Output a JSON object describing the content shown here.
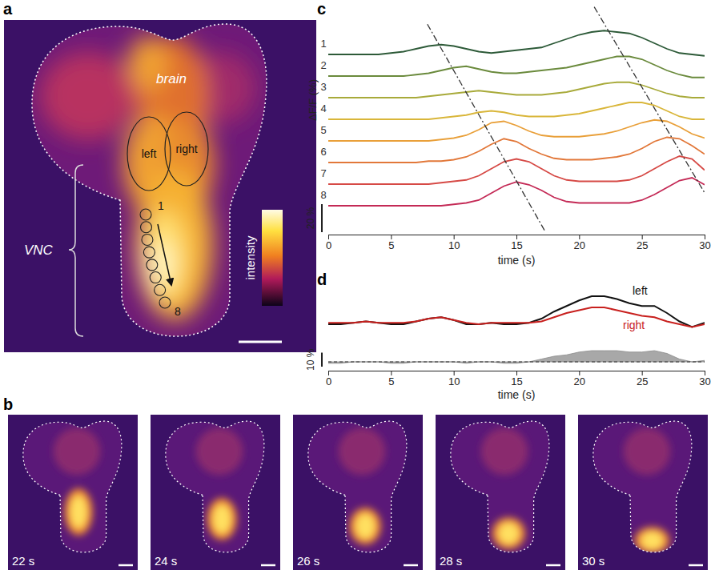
{
  "figure": {
    "a": {
      "letter": "a",
      "region_labels": {
        "brain": "brain",
        "vnc": "VNC"
      },
      "colorbar_label": "intensity"
    },
    "b": {
      "letter": "b",
      "frames": [
        {
          "value": 22,
          "label": "22 s"
        },
        {
          "value": 24,
          "label": "24 s"
        },
        {
          "value": 26,
          "label": "26 s"
        },
        {
          "value": 28,
          "label": "28 s"
        },
        {
          "value": 30,
          "label": "30 s"
        }
      ]
    }
  },
  "chart_data": [
    {
      "type": "line",
      "panel_label": "c",
      "y_label": "ΔF/F (%)",
      "x_label": "time (s)",
      "tick_labels": "x",
      "xlim": [
        0,
        30
      ],
      "xticks": [
        0,
        5,
        10,
        15,
        20,
        25,
        30
      ],
      "x": [
        0,
        1,
        2,
        3,
        4,
        5,
        6,
        7,
        8,
        9,
        10,
        11,
        12,
        13,
        14,
        15,
        16,
        17,
        18,
        19,
        20,
        21,
        22,
        23,
        24,
        25,
        26,
        27,
        28,
        29,
        30
      ],
      "series": [
        {
          "name": "1",
          "color": "#2d5a38",
          "values": [
            0,
            0,
            0,
            0,
            0,
            1,
            2,
            4,
            6,
            7,
            6,
            4,
            2,
            1,
            2,
            3,
            4,
            5,
            8,
            11,
            14,
            16,
            17,
            16,
            15,
            12,
            8,
            4,
            1,
            0,
            -1
          ]
        },
        {
          "name": "2",
          "color": "#6a8a3c",
          "values": [
            0,
            0,
            0,
            0,
            0,
            0,
            0,
            1,
            2,
            4,
            6,
            7,
            5,
            3,
            2,
            2,
            3,
            4,
            5,
            6,
            8,
            10,
            12,
            14,
            14,
            12,
            8,
            4,
            1,
            -1,
            -1
          ]
        },
        {
          "name": "3",
          "color": "#a8aa3a",
          "values": [
            0,
            0,
            0,
            0,
            0,
            0,
            0,
            0,
            1,
            2,
            3,
            4,
            5,
            4,
            3,
            2,
            2,
            2,
            3,
            4,
            6,
            8,
            10,
            11,
            11,
            9,
            6,
            3,
            1,
            0,
            0
          ]
        },
        {
          "name": "4",
          "color": "#d9b63a",
          "values": [
            0,
            0,
            0,
            0,
            0,
            0,
            0,
            0,
            0,
            1,
            2,
            3,
            5,
            6,
            5,
            3,
            2,
            2,
            2,
            3,
            4,
            6,
            8,
            10,
            12,
            12,
            10,
            6,
            2,
            0,
            0
          ]
        },
        {
          "name": "5",
          "color": "#e9a03a",
          "values": [
            0,
            0,
            0,
            0,
            0,
            0,
            0,
            0,
            0,
            1,
            2,
            4,
            8,
            13,
            14,
            11,
            7,
            4,
            3,
            3,
            3,
            4,
            5,
            7,
            10,
            13,
            15,
            14,
            10,
            5,
            2
          ]
        },
        {
          "name": "6",
          "color": "#e2783a",
          "values": [
            0,
            0,
            0,
            0,
            0,
            0,
            0,
            0,
            1,
            1,
            2,
            4,
            8,
            13,
            17,
            15,
            10,
            6,
            3,
            2,
            2,
            2,
            3,
            4,
            6,
            10,
            15,
            18,
            17,
            12,
            6
          ]
        },
        {
          "name": "7",
          "color": "#d64a46",
          "values": [
            0,
            0,
            0,
            0,
            0,
            0,
            0,
            0,
            0,
            1,
            2,
            3,
            6,
            11,
            16,
            18,
            16,
            11,
            6,
            3,
            2,
            2,
            2,
            2,
            3,
            6,
            11,
            16,
            20,
            18,
            10
          ]
        },
        {
          "name": "8",
          "color": "#c42a56",
          "values": [
            0,
            0,
            0,
            0,
            0,
            0,
            0,
            0,
            0,
            0,
            1,
            2,
            4,
            9,
            14,
            17,
            15,
            11,
            6,
            3,
            2,
            2,
            2,
            2,
            2,
            4,
            8,
            13,
            18,
            20,
            15
          ]
        }
      ],
      "scale_bar": {
        "value": 20,
        "label": "20 %"
      },
      "annotations": [
        {
          "x": [
            7.9,
            17.3
          ],
          "trace_position": [
            -0.4,
            9.2
          ],
          "line_style": "dashdot"
        },
        {
          "x": [
            21.2,
            30
          ],
          "trace_position": [
            -1.2,
            7.4
          ],
          "line_style": "dashdot"
        }
      ]
    },
    {
      "type": "line",
      "panel_label": "d",
      "x_label": "time (s)",
      "tick_labels": "x",
      "xlim": [
        0,
        30
      ],
      "xticks": [
        0,
        5,
        10,
        15,
        20,
        25,
        30
      ],
      "x": [
        0,
        1,
        2,
        3,
        4,
        5,
        6,
        7,
        8,
        9,
        10,
        11,
        12,
        13,
        14,
        15,
        16,
        17,
        18,
        19,
        20,
        21,
        22,
        23,
        24,
        25,
        26,
        27,
        28,
        29,
        30
      ],
      "series": [
        {
          "name": "left",
          "color": "#111111",
          "values": [
            0,
            0,
            1,
            2,
            1,
            0,
            0,
            2,
            4,
            5,
            3,
            0,
            0,
            1,
            0,
            0,
            1,
            4,
            9,
            13,
            17,
            20,
            20,
            18,
            15,
            13,
            13,
            8,
            2,
            -2,
            1
          ]
        },
        {
          "name": "right",
          "color": "#c8201e",
          "values": [
            1,
            1,
            1,
            2,
            1,
            1,
            1,
            2,
            4,
            5,
            3,
            1,
            0,
            1,
            1,
            1,
            1,
            2,
            5,
            8,
            10,
            12,
            12,
            10,
            8,
            6,
            5,
            2,
            0,
            -2,
            0
          ]
        },
        {
          "type": "area",
          "color": "#a8a8a8",
          "line_style": "dashed",
          "values": [
            -1,
            -1,
            0,
            0,
            0,
            -1,
            -1,
            0,
            0,
            0,
            0,
            -1,
            0,
            0,
            -1,
            -1,
            0,
            2,
            4,
            5,
            7,
            8,
            8,
            8,
            7,
            7,
            8,
            6,
            2,
            0,
            1
          ]
        }
      ],
      "scale_bar": {
        "value": 10,
        "label": "10 %"
      }
    }
  ]
}
